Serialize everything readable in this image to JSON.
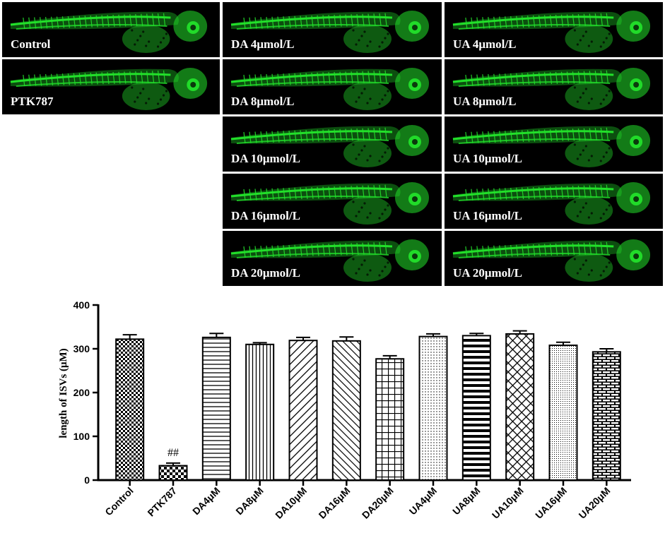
{
  "panels": [
    {
      "id": "control",
      "label": "Control"
    },
    {
      "id": "ptk787",
      "label": "PTK787"
    },
    {
      "id": "da4",
      "label": "DA 4μmol/L"
    },
    {
      "id": "da8",
      "label": "DA 8μmol/L"
    },
    {
      "id": "da10",
      "label": "DA 10μmol/L"
    },
    {
      "id": "da16",
      "label": "DA 16μmol/L"
    },
    {
      "id": "da20",
      "label": "DA 20μmol/L"
    },
    {
      "id": "ua4",
      "label": "UA 4μmol/L"
    },
    {
      "id": "ua8",
      "label": "UA 8μmol/L"
    },
    {
      "id": "ua10",
      "label": "UA 10μmol/L"
    },
    {
      "id": "ua16",
      "label": "UA 16μmol/L"
    },
    {
      "id": "ua20",
      "label": "UA 20μmol/L"
    }
  ],
  "chart_data": {
    "type": "bar",
    "categories": [
      "Control",
      "PTK787",
      "DA4μM",
      "DA8μM",
      "DA10μM",
      "DA16μM",
      "DA20μM",
      "UA4μM",
      "UA8μM",
      "UA10μM",
      "UA16μM",
      "UA20μM"
    ],
    "values": [
      322,
      33,
      326,
      310,
      319,
      318,
      277,
      328,
      330,
      334,
      308,
      293
    ],
    "errors": [
      10,
      6,
      9,
      4,
      7,
      9,
      7,
      6,
      5,
      7,
      7,
      7
    ],
    "annotations": [
      {
        "category": "PTK787",
        "text": "##"
      }
    ],
    "ylabel": "length of ISVs (μM)",
    "xlabel": "",
    "ylim": [
      0,
      400
    ],
    "yticks": [
      0,
      100,
      200,
      300,
      400
    ],
    "bar_patterns": [
      "checker",
      "checker-coarse",
      "horizontal",
      "vertical",
      "diag-up",
      "diag-down",
      "grid",
      "dots",
      "horizontal-thick",
      "crosshatch",
      "dots-fine",
      "brick"
    ],
    "colors": {
      "fluorescence": "#22e02a",
      "background": "#000000",
      "bar_stroke": "#000000"
    }
  }
}
